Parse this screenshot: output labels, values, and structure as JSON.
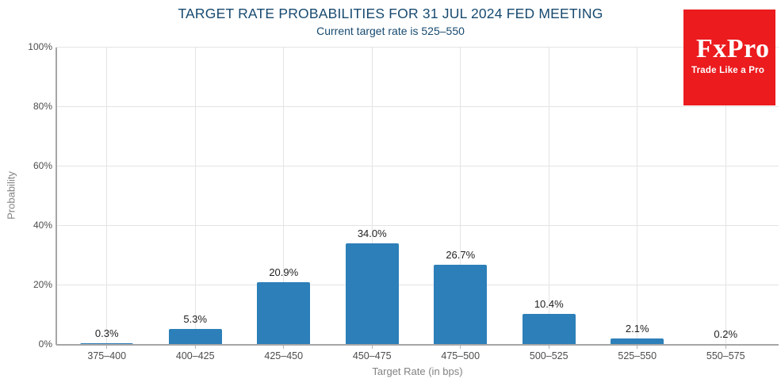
{
  "chart_data": {
    "type": "bar",
    "title": "TARGET RATE PROBABILITIES FOR 31 JUL 2024 FED MEETING",
    "subtitle": "Current target rate is 525–550",
    "categories": [
      "375–400",
      "400–425",
      "425–450",
      "450–475",
      "475–500",
      "500–525",
      "525–550",
      "550–575"
    ],
    "values": [
      0.3,
      5.3,
      20.9,
      34.0,
      26.7,
      10.4,
      2.1,
      0.2
    ],
    "value_labels": [
      "0.3%",
      "5.3%",
      "20.9%",
      "34.0%",
      "26.7%",
      "10.4%",
      "2.1%",
      "0.2%"
    ],
    "xlabel": "Target Rate (in bps)",
    "ylabel": "Probability",
    "ylim": [
      0,
      100
    ],
    "ytick_values": [
      0,
      20,
      40,
      60,
      80,
      100
    ],
    "ytick_labels": [
      "0%",
      "20%",
      "40%",
      "60%",
      "80%",
      "100%"
    ],
    "grid": true,
    "legend_position": "none",
    "colors": {
      "bar": "#2c7fb8",
      "title_text": "#174a70",
      "gridline": "#e4e4e4",
      "axis_line": "#a6a6a6",
      "tick_mark": "#b5b5b5",
      "tick_label": "#4d4d4d",
      "data_label": "#1f1f1f",
      "axis_title": "#828282"
    }
  },
  "logo": {
    "name": "FxPro",
    "tagline": "Trade Like a Pro",
    "background": "#eb1b1e",
    "text_color": "#ffffff"
  }
}
